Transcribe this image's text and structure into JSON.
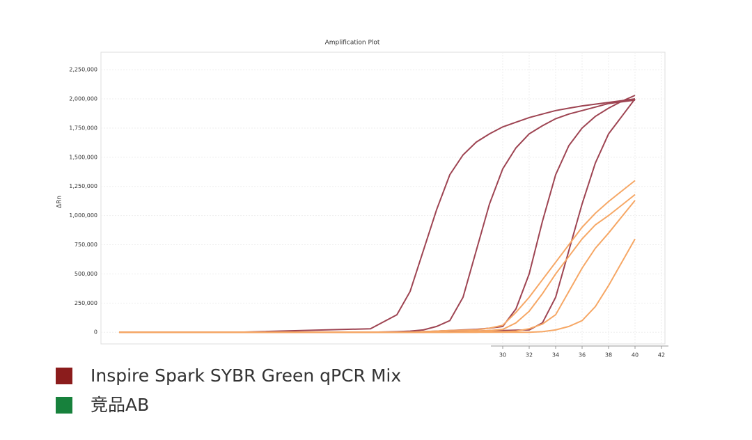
{
  "chart_data": {
    "type": "line",
    "title": "Amplification Plot",
    "y_label": "ΔRn",
    "x": [
      1,
      10,
      20,
      22,
      23,
      24,
      25,
      26,
      27,
      28,
      29,
      30,
      31,
      32,
      33,
      34,
      35,
      36,
      37,
      38,
      39,
      40
    ],
    "series": [
      {
        "color": "#9e4452",
        "values": [
          0,
          0,
          30000,
          150000,
          350000,
          700000,
          1050000,
          1350000,
          1520000,
          1630000,
          1700000,
          1760000,
          1800000,
          1840000,
          1870000,
          1900000,
          1920000,
          1940000,
          1955000,
          1970000,
          1985000,
          2000000
        ]
      },
      {
        "color": "#9e4452",
        "values": [
          0,
          0,
          0,
          5000,
          10000,
          20000,
          50000,
          100000,
          300000,
          700000,
          1100000,
          1400000,
          1580000,
          1700000,
          1770000,
          1830000,
          1870000,
          1900000,
          1930000,
          1960000,
          1975000,
          1990000
        ]
      },
      {
        "color": "#9e4452",
        "values": [
          0,
          0,
          0,
          0,
          0,
          5000,
          10000,
          15000,
          20000,
          25000,
          35000,
          50000,
          200000,
          500000,
          950000,
          1350000,
          1600000,
          1750000,
          1850000,
          1920000,
          1980000,
          2030000
        ]
      },
      {
        "color": "#9e4452",
        "values": [
          0,
          0,
          0,
          0,
          0,
          0,
          5000,
          5000,
          10000,
          10000,
          15000,
          15000,
          18000,
          20000,
          80000,
          300000,
          700000,
          1100000,
          1450000,
          1700000,
          1850000,
          2000000
        ]
      },
      {
        "color": "#f6a765",
        "values": [
          0,
          0,
          0,
          0,
          0,
          5000,
          10000,
          15000,
          18000,
          20000,
          35000,
          60000,
          170000,
          300000,
          450000,
          600000,
          750000,
          900000,
          1020000,
          1120000,
          1210000,
          1300000
        ]
      },
      {
        "color": "#f6a765",
        "values": [
          0,
          0,
          0,
          0,
          0,
          0,
          0,
          0,
          5000,
          10000,
          15000,
          25000,
          80000,
          180000,
          330000,
          500000,
          650000,
          800000,
          920000,
          1000000,
          1090000,
          1180000
        ]
      },
      {
        "color": "#f6a765",
        "values": [
          0,
          0,
          0,
          0,
          0,
          0,
          0,
          0,
          0,
          0,
          5000,
          5000,
          10000,
          30000,
          70000,
          150000,
          350000,
          550000,
          720000,
          850000,
          990000,
          1130000
        ]
      },
      {
        "color": "#f6a765",
        "values": [
          0,
          0,
          0,
          0,
          0,
          0,
          0,
          0,
          0,
          0,
          0,
          0,
          0,
          0,
          5000,
          20000,
          50000,
          100000,
          220000,
          400000,
          600000,
          800000
        ]
      }
    ],
    "xlim": [
      0,
      42
    ],
    "xticks": [
      30,
      32,
      34,
      36,
      38,
      40,
      42
    ],
    "ylim": [
      -100000,
      2400000
    ],
    "yticks": [
      0,
      {
        "value": 250000,
        "label": "250,000"
      },
      {
        "value": 500000,
        "label": "500,000"
      },
      {
        "value": 750000,
        "label": "750,000"
      },
      {
        "value": 1000000,
        "label": "1,000,000"
      },
      {
        "value": 1250000,
        "label": "1,250,000"
      },
      {
        "value": 1500000,
        "label": "1,500,000"
      },
      {
        "value": 1750000,
        "label": "1,750,000"
      },
      {
        "value": 2000000,
        "label": "2,000,000"
      },
      {
        "value": 2250000,
        "label": "2,250,000"
      }
    ],
    "grid": true,
    "legend": [
      {
        "label": "Inspire Spark SYBR Green qPCR Mix",
        "color": "#8b1c1c"
      },
      {
        "label": "竞品AB",
        "color": "#17813c"
      }
    ]
  }
}
